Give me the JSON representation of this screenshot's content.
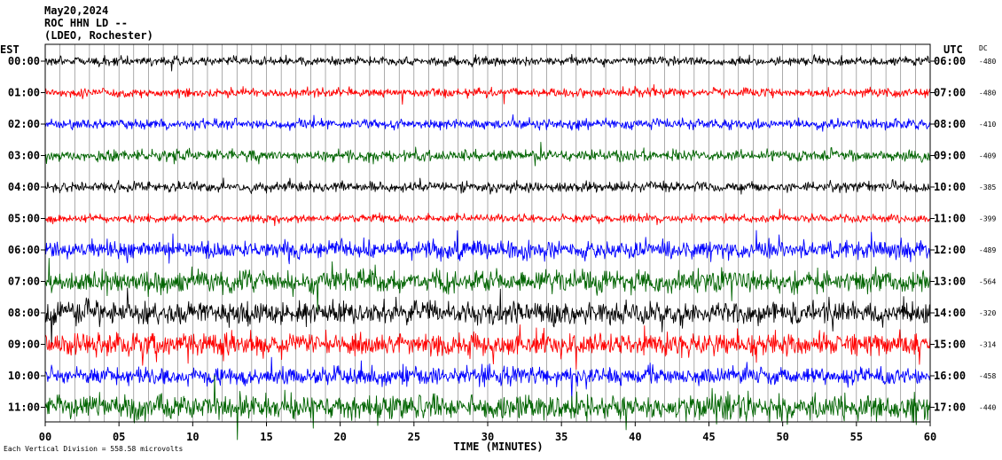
{
  "header": {
    "date": "May20,2024",
    "station": "ROC HHN LD --",
    "location": "(LDEO, Rochester)"
  },
  "chart_data": {
    "type": "line",
    "left_axis_label": "EST",
    "right_axis_label": "UTC",
    "dc_label": "DC",
    "xlabel": "TIME (MINUTES)",
    "xlim": [
      0,
      60
    ],
    "x_ticks": [
      "00",
      "05",
      "10",
      "15",
      "20",
      "25",
      "30",
      "35",
      "40",
      "45",
      "50",
      "55",
      "60"
    ],
    "scale_note": "Each Vertical Division = 558.58 microvolts",
    "trace_colors": [
      "#000000",
      "#ff0000",
      "#0000ff",
      "#006400"
    ],
    "rows": [
      {
        "est": "00:00",
        "utc": "06:00",
        "dc": "-480",
        "amplitude": 8
      },
      {
        "est": "01:00",
        "utc": "07:00",
        "dc": "-480",
        "amplitude": 8
      },
      {
        "est": "02:00",
        "utc": "08:00",
        "dc": "-410",
        "amplitude": 9
      },
      {
        "est": "03:00",
        "utc": "09:00",
        "dc": "-409",
        "amplitude": 10
      },
      {
        "est": "04:00",
        "utc": "10:00",
        "dc": "-385",
        "amplitude": 9
      },
      {
        "est": "05:00",
        "utc": "11:00",
        "dc": "-399",
        "amplitude": 7
      },
      {
        "est": "06:00",
        "utc": "12:00",
        "dc": "-489",
        "amplitude": 16
      },
      {
        "est": "07:00",
        "utc": "13:00",
        "dc": "-564",
        "amplitude": 20
      },
      {
        "est": "08:00",
        "utc": "14:00",
        "dc": "-320",
        "amplitude": 20
      },
      {
        "est": "09:00",
        "utc": "15:00",
        "dc": "-314",
        "amplitude": 20
      },
      {
        "est": "10:00",
        "utc": "16:00",
        "dc": "-458",
        "amplitude": 16
      },
      {
        "est": "11:00",
        "utc": "17:00",
        "dc": "-440",
        "amplitude": 22
      }
    ]
  }
}
